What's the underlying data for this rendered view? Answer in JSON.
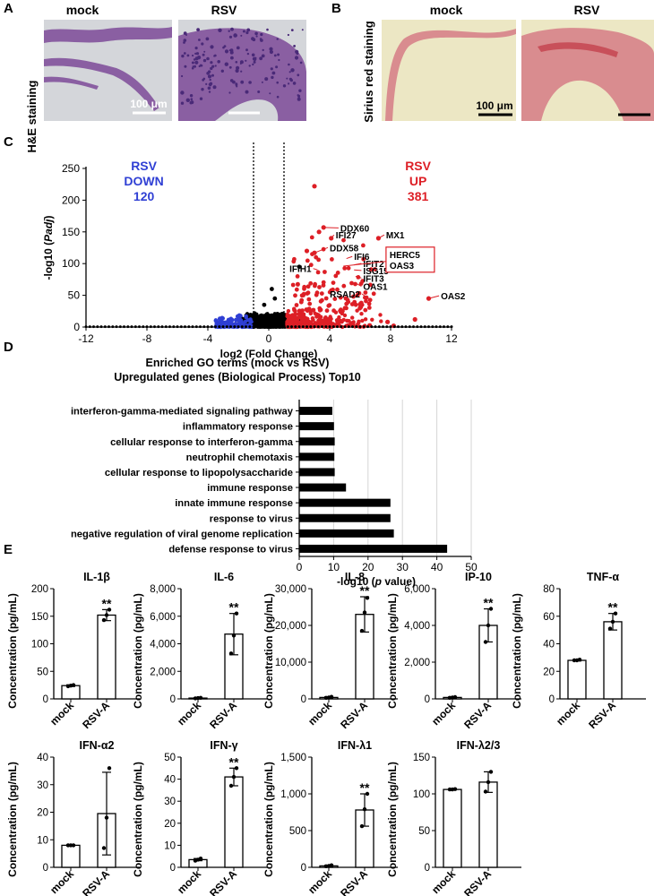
{
  "panels": {
    "A": {
      "letter": "A",
      "stain_label": "H&E staining",
      "images": [
        {
          "label": "mock"
        },
        {
          "label": "RSV"
        }
      ],
      "scale_bar": "100 μm"
    },
    "B": {
      "letter": "B",
      "stain_label": "Sirius red staining",
      "images": [
        {
          "label": "mock"
        },
        {
          "label": "RSV"
        }
      ],
      "scale_bar": "100 μm"
    },
    "C": {
      "letter": "C"
    },
    "D": {
      "letter": "D"
    },
    "E": {
      "letter": "E"
    }
  },
  "colors": {
    "up": "#dd1f26",
    "down": "#2f3fd4",
    "ns": "#000000",
    "he_bg": "#d4d6da",
    "he_tissue": "#8a5fa2",
    "he_nuclei": "#4a2a78",
    "sr_bg": "#ece7c4",
    "sr_tissue": "#d98c8f",
    "sr_strong": "#c8505a"
  },
  "chart_data": [
    {
      "id": "volcano",
      "type": "scatter",
      "xlabel": "log2 (Fold Change)",
      "ylabel_prefix": "-log10 (",
      "ylabel_italic": "Padj",
      "ylabel_suffix": ")",
      "xlim": [
        -12,
        12
      ],
      "ylim": [
        0,
        250
      ],
      "xticks": [
        -12,
        -8,
        -4,
        0,
        4,
        8,
        12
      ],
      "yticks": [
        0,
        50,
        100,
        150,
        200,
        250
      ],
      "thresholds_x": [
        -1,
        1
      ],
      "down_label": [
        "RSV",
        "DOWN",
        "120"
      ],
      "up_label": [
        "RSV",
        "UP",
        "381"
      ],
      "labeled_genes": [
        {
          "name": "DDX60",
          "x": 3.6,
          "y": 157,
          "lx": 4.7,
          "ly": 152
        },
        {
          "name": "IFI27",
          "x": 4.1,
          "y": 140,
          "lx": 4.4,
          "ly": 141
        },
        {
          "name": "MX1",
          "x": 7.2,
          "y": 140,
          "lx": 7.7,
          "ly": 141
        },
        {
          "name": "DDX58",
          "x": 3.0,
          "y": 117,
          "lx": 4.0,
          "ly": 121
        },
        {
          "name": "IFI6",
          "x": 5.1,
          "y": 108,
          "lx": 5.6,
          "ly": 107
        },
        {
          "name": "IFIT2",
          "x": 5.6,
          "y": 98,
          "lx": 6.2,
          "ly": 96
        },
        {
          "name": "ISG15",
          "x": 5.6,
          "y": 90,
          "lx": 6.2,
          "ly": 85
        },
        {
          "name": "IFIT3",
          "x": 5.7,
          "y": 80,
          "lx": 6.2,
          "ly": 73
        },
        {
          "name": "OAS1",
          "x": 5.8,
          "y": 68,
          "lx": 6.2,
          "ly": 60
        },
        {
          "name": "RSAD2",
          "x": 6.6,
          "y": 44,
          "lx": 6.0,
          "ly": 48
        },
        {
          "name": "OAS2",
          "x": 10.5,
          "y": 45,
          "lx": 11.3,
          "ly": 45
        },
        {
          "name": "IFIH1",
          "x": 3.2,
          "y": 90,
          "lx": 2.8,
          "ly": 88
        }
      ],
      "boxed_genes": [
        "HERC5",
        "OAS3"
      ],
      "boxed_point": {
        "x": 4.9,
        "y": 96
      }
    },
    {
      "id": "go_terms",
      "type": "bar",
      "orientation": "horizontal",
      "title": [
        "Enriched GO terms (mock vs RSV)",
        "Upregulated genes  (Biological Process) Top10"
      ],
      "categories": [
        "interferon-gamma-mediated signaling pathway",
        "inflammatory response",
        "cellular response to interferon-gamma",
        "neutrophil chemotaxis",
        "cellular response to lipopolysaccharide",
        "immune response",
        "innate immune response",
        "response to virus",
        "negative regulation of viral genome replication",
        "defense response to virus"
      ],
      "values": [
        9.6,
        10.1,
        10.3,
        10.2,
        10.3,
        13.6,
        26.5,
        26.5,
        27.5,
        43.0
      ],
      "xlabel_prefix": "-log10 (",
      "xlabel_italic": "p",
      "xlabel_suffix": " value)",
      "xlim": [
        0,
        50
      ],
      "xticks": [
        0,
        10,
        20,
        30,
        40,
        50
      ]
    },
    {
      "id": "cytokines",
      "type": "bar",
      "ylabel": "Concentration (pg/mL)",
      "categories": [
        "mock",
        "RSV-A"
      ],
      "significance": "**",
      "panels": [
        {
          "title": "IL-1β",
          "ylim": [
            0,
            200
          ],
          "yticks": [
            "0",
            "50",
            "100",
            "150",
            "200"
          ],
          "means": [
            24,
            152
          ],
          "sd": [
            1.5,
            10
          ],
          "points": [
            [
              23,
              24,
              25
            ],
            [
              143,
              152,
              162
            ]
          ],
          "sig": true
        },
        {
          "title": "IL-6",
          "ylim": [
            0,
            8000
          ],
          "yticks": [
            "0",
            "2,000",
            "4,000",
            "6,000",
            "8,000"
          ],
          "means": [
            60,
            4700
          ],
          "sd": [
            20,
            1500
          ],
          "points": [
            [
              40,
              60,
              80
            ],
            [
              3300,
              4600,
              6200
            ]
          ],
          "sig": true
        },
        {
          "title": "IL-8",
          "ylim": [
            0,
            30000
          ],
          "yticks": [
            "0",
            "10,000",
            "20,000",
            "30,000"
          ],
          "means": [
            400,
            23000
          ],
          "sd": [
            150,
            4800
          ],
          "points": [
            [
              300,
              400,
              550
            ],
            [
              18500,
              23500,
              27500
            ]
          ],
          "sig": true
        },
        {
          "title": "IP-10",
          "ylim": [
            0,
            6000
          ],
          "yticks": [
            "0",
            "2,000",
            "4,000",
            "6,000"
          ],
          "means": [
            80,
            4000
          ],
          "sd": [
            20,
            900
          ],
          "points": [
            [
              60,
              80,
              100
            ],
            [
              3100,
              4000,
              4900
            ]
          ],
          "sig": true
        },
        {
          "title": "TNF-α",
          "ylim": [
            0,
            80
          ],
          "yticks": [
            "0",
            "20",
            "40",
            "60",
            "80"
          ],
          "means": [
            28,
            56
          ],
          "sd": [
            0.5,
            6
          ],
          "points": [
            [
              28,
              28,
              28.5
            ],
            [
              51,
              56,
              62
            ]
          ],
          "sig": true
        },
        {
          "title": "IFN-α2",
          "ylim": [
            0,
            40
          ],
          "yticks": [
            "0",
            "10",
            "20",
            "30",
            "40"
          ],
          "means": [
            8,
            19.5
          ],
          "sd": [
            0.2,
            15
          ],
          "points": [
            [
              8,
              8,
              8
            ],
            [
              7,
              18,
              36
            ]
          ],
          "sig": false
        },
        {
          "title": "IFN-γ",
          "ylim": [
            0,
            50
          ],
          "yticks": [
            "0",
            "10",
            "20",
            "30",
            "40",
            "50"
          ],
          "means": [
            3.5,
            41
          ],
          "sd": [
            0.5,
            4
          ],
          "points": [
            [
              3,
              3.5,
              4
            ],
            [
              37,
              41,
              45
            ]
          ],
          "sig": true
        },
        {
          "title": "IFN-λ1",
          "ylim": [
            0,
            1500
          ],
          "yticks": [
            "0",
            "500",
            "1,000",
            "1,500"
          ],
          "means": [
            20,
            780
          ],
          "sd": [
            8,
            220
          ],
          "points": [
            [
              15,
              20,
              28
            ],
            [
              560,
              790,
              1000
            ]
          ],
          "sig": true
        },
        {
          "title": "IFN-λ2/3",
          "ylim": [
            0,
            150
          ],
          "yticks": [
            "0",
            "50",
            "100",
            "150"
          ],
          "means": [
            106,
            116
          ],
          "sd": [
            0.5,
            14
          ],
          "points": [
            [
              106,
              106,
              106.5
            ],
            [
              103,
              116,
              130
            ]
          ],
          "sig": false
        }
      ]
    }
  ]
}
